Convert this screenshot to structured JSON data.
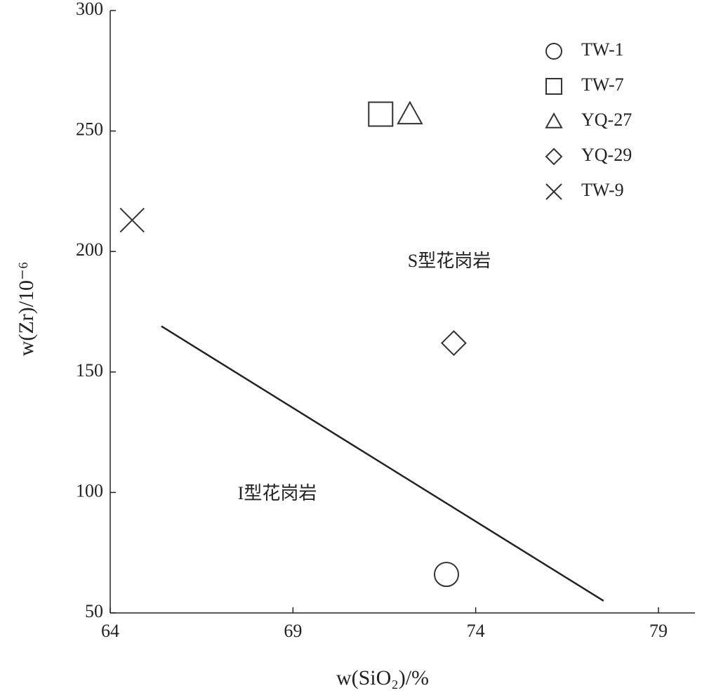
{
  "chart_data": {
    "type": "scatter",
    "xlabel": "w(SiO₂)/%",
    "ylabel": "w(Zr)/10⁻⁶",
    "xlim": [
      64,
      80
    ],
    "xticks": [
      64,
      69,
      74,
      79
    ],
    "ylim": [
      50,
      300
    ],
    "yticks": [
      50,
      100,
      150,
      200,
      250,
      300
    ],
    "grid": false,
    "legend": "upper right",
    "annotations": [
      "S型花岗岩",
      "I型花岗岩"
    ],
    "boundary_line": {
      "x": [
        65.4,
        77.5
      ],
      "values": [
        169,
        55
      ],
      "color": "#222222"
    },
    "series": [
      {
        "name": "TW-1",
        "marker": "circle",
        "color": "#333333",
        "x": [
          73.2
        ],
        "values": [
          66
        ]
      },
      {
        "name": "TW-7",
        "marker": "square",
        "color": "#333333",
        "x": [
          71.4
        ],
        "values": [
          257
        ]
      },
      {
        "name": "YQ-27",
        "marker": "triangle",
        "color": "#333333",
        "x": [
          72.2
        ],
        "values": [
          257
        ]
      },
      {
        "name": "YQ-29",
        "marker": "diamond",
        "color": "#333333",
        "x": [
          73.4
        ],
        "values": [
          162
        ]
      },
      {
        "name": "TW-9",
        "marker": "cross",
        "color": "#333333",
        "x": [
          64.6
        ],
        "values": [
          213
        ]
      }
    ]
  }
}
